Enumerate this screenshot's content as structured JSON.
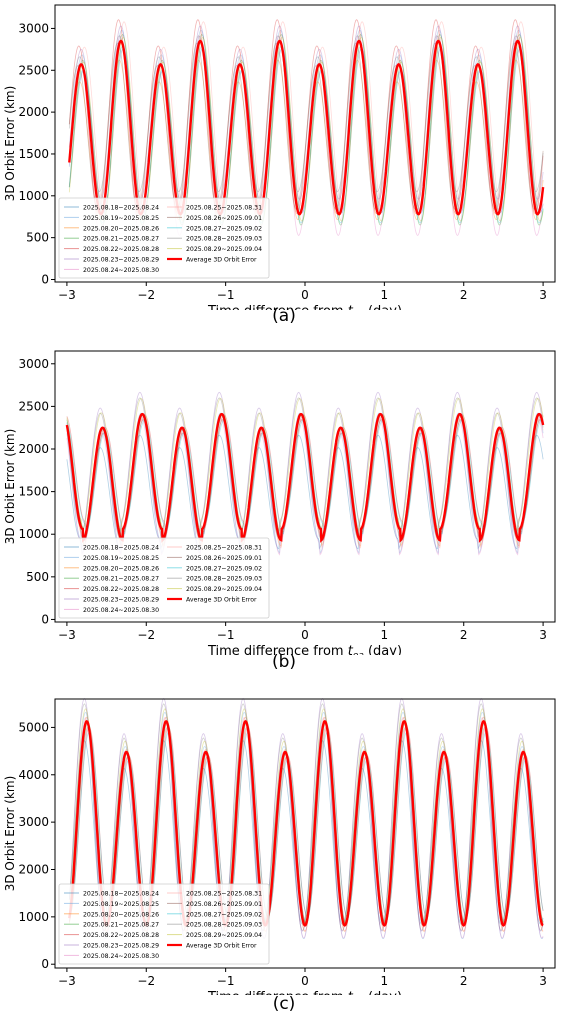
{
  "chart_data": [
    {
      "type": "line",
      "caption": "(a)",
      "ylabel": "3D Orbit Error (km)",
      "xlabel_prefix": "Time difference from ",
      "xlabel_sym": "t",
      "xlabel_sub": "oa",
      "xlabel_suffix": " (day)",
      "xlim": [
        -3.15,
        3.15
      ],
      "ylim": [
        -30,
        3280
      ],
      "xticks": [
        -3,
        -2,
        -1,
        0,
        1,
        2,
        3
      ],
      "yticks": [
        0,
        500,
        1000,
        1500,
        2000,
        2500,
        3000
      ],
      "average": {
        "name": "Average 3D Orbit Error",
        "color": "#ff0000",
        "period_days": 1.0,
        "peaks": [
          2570,
          2850
        ],
        "trough": 780,
        "first_peak_x": -2.82,
        "x_range": [
          -2.97,
          3.0
        ],
        "note_peak_x": [
          -2.82,
          -2.3,
          -1.82,
          -1.3,
          -0.82,
          -0.3,
          0.18,
          0.7,
          1.18,
          1.7,
          2.18,
          2.7
        ]
      },
      "series": [
        {
          "name": "2025.08.18~2025.08.24",
          "color": "#1f77b4",
          "amp": 0.95,
          "shift": 0.03,
          "offset": -20
        },
        {
          "name": "2025.08.19~2025.08.25",
          "color": "#5fa2dd",
          "amp": 1.05,
          "shift": 0.01,
          "offset": 60
        },
        {
          "name": "2025.08.20~2025.08.26",
          "color": "#ff7f0e",
          "amp": 0.92,
          "shift": -0.02,
          "offset": -120
        },
        {
          "name": "2025.08.21~2025.08.27",
          "color": "#2ca02c",
          "amp": 1.1,
          "shift": 0.02,
          "offset": -60
        },
        {
          "name": "2025.08.22~2025.08.28",
          "color": "#d62728",
          "amp": 1.12,
          "shift": -0.03,
          "offset": 90
        },
        {
          "name": "2025.08.23~2025.08.29",
          "color": "#9467bd",
          "amp": 1.0,
          "shift": 0.0,
          "offset": 180
        },
        {
          "name": "2025.08.24~2025.08.30",
          "color": "#e377c2",
          "amp": 1.15,
          "shift": -0.01,
          "offset": -150
        },
        {
          "name": "2025.08.25~2025.08.31",
          "color": "#ff9896",
          "amp": 1.08,
          "shift": 0.04,
          "offset": 120
        },
        {
          "name": "2025.08.26~2025.09.01",
          "color": "#8c564b",
          "amp": 0.96,
          "shift": -0.04,
          "offset": 30
        },
        {
          "name": "2025.08.27~2025.09.02",
          "color": "#17becf",
          "amp": 1.02,
          "shift": 0.02,
          "offset": -90
        },
        {
          "name": "2025.08.28~2025.09.03",
          "color": "#7f7f7f",
          "amp": 0.9,
          "shift": -0.02,
          "offset": 200
        },
        {
          "name": "2025.08.29~2025.09.04",
          "color": "#bcbd22",
          "amp": 1.06,
          "shift": 0.03,
          "offset": -40
        }
      ],
      "legend": {
        "placement": "lower-left",
        "col1": [
          "2025.08.18~2025.08.24",
          "2025.08.19~2025.08.25",
          "2025.08.20~2025.08.26",
          "2025.08.21~2025.08.27",
          "2025.08.22~2025.08.28",
          "2025.08.23~2025.08.29",
          "2025.08.24~2025.08.30"
        ],
        "col2": [
          "2025.08.25~2025.08.31",
          "2025.08.26~2025.09.01",
          "2025.08.27~2025.09.02",
          "2025.08.28~2025.09.03",
          "2025.08.29~2025.09.04",
          "Average 3D Orbit Error"
        ]
      }
    },
    {
      "type": "line",
      "caption": "(b)",
      "ylabel": "3D Orbit Error (km)",
      "xlabel_prefix": "Time difference from ",
      "xlabel_sym": "t",
      "xlabel_sub": "oa",
      "xlabel_suffix": " (day)",
      "xlim": [
        -3.15,
        3.15
      ],
      "ylim": [
        -30,
        3150
      ],
      "xticks": [
        -3,
        -2,
        -1,
        0,
        1,
        2,
        3
      ],
      "yticks": [
        0,
        500,
        1000,
        1500,
        2000,
        2500,
        3000
      ],
      "average": {
        "name": "Average 3D Orbit Error",
        "color": "#ff0000",
        "period_days": 1.0,
        "peaks": [
          2410,
          2250
        ],
        "troughs": [
          1060,
          930
        ],
        "first_peak_x": -2.05,
        "x_range": [
          -3.0,
          3.0
        ]
      },
      "series": [
        {
          "name": "2025.08.18~2025.08.24",
          "color": "#1f77b4"
        },
        {
          "name": "2025.08.19~2025.08.25",
          "color": "#5fa2dd"
        },
        {
          "name": "2025.08.20~2025.08.26",
          "color": "#ff7f0e"
        },
        {
          "name": "2025.08.21~2025.08.27",
          "color": "#2ca02c"
        },
        {
          "name": "2025.08.22~2025.08.28",
          "color": "#d62728"
        },
        {
          "name": "2025.08.23~2025.08.29",
          "color": "#9467bd"
        },
        {
          "name": "2025.08.24~2025.08.30",
          "color": "#e377c2"
        },
        {
          "name": "2025.08.25~2025.08.31",
          "color": "#ff9896"
        },
        {
          "name": "2025.08.26~2025.09.01",
          "color": "#8c564b"
        },
        {
          "name": "2025.08.27~2025.09.02",
          "color": "#17becf"
        },
        {
          "name": "2025.08.28~2025.09.03",
          "color": "#7f7f7f"
        },
        {
          "name": "2025.08.29~2025.09.04",
          "color": "#bcbd22"
        }
      ],
      "legend": {
        "placement": "lower-left",
        "col1": [
          "2025.08.18~2025.08.24",
          "2025.08.19~2025.08.25",
          "2025.08.20~2025.08.26",
          "2025.08.21~2025.08.27",
          "2025.08.22~2025.08.28",
          "2025.08.23~2025.08.29",
          "2025.08.24~2025.08.30"
        ],
        "col2": [
          "2025.08.25~2025.08.31",
          "2025.08.26~2025.09.01",
          "2025.08.27~2025.09.02",
          "2025.08.28~2025.09.03",
          "2025.08.29~2025.09.04",
          "Average 3D Orbit Error"
        ]
      }
    },
    {
      "type": "line",
      "caption": "(c)",
      "ylabel": "3D Orbit Error (km)",
      "xlabel_prefix": "Time difference from ",
      "xlabel_sym": "t",
      "xlabel_sub": "oa",
      "xlabel_suffix": " (day)",
      "xlim": [
        -3.15,
        3.15
      ],
      "ylim": [
        -80,
        5600
      ],
      "xticks": [
        -3,
        -2,
        -1,
        0,
        1,
        2,
        3
      ],
      "yticks": [
        0,
        1000,
        2000,
        3000,
        4000,
        5000
      ],
      "average": {
        "name": "Average 3D Orbit Error",
        "color": "#ff0000",
        "period_days": 1.0,
        "peaks": [
          5130,
          4480
        ],
        "trough": 820,
        "first_peak_x": -2.75,
        "x_range": [
          -2.97,
          3.0
        ]
      },
      "series": [
        {
          "name": "2025.08.18~2025.08.24",
          "color": "#1f77b4"
        },
        {
          "name": "2025.08.19~2025.08.25",
          "color": "#5fa2dd"
        },
        {
          "name": "2025.08.20~2025.08.26",
          "color": "#ff7f0e"
        },
        {
          "name": "2025.08.21~2025.08.27",
          "color": "#2ca02c"
        },
        {
          "name": "2025.08.22~2025.08.28",
          "color": "#d62728"
        },
        {
          "name": "2025.08.23~2025.08.29",
          "color": "#9467bd"
        },
        {
          "name": "2025.08.24~2025.08.30",
          "color": "#e377c2"
        },
        {
          "name": "2025.08.25~2025.08.31",
          "color": "#ff9896"
        },
        {
          "name": "2025.08.26~2025.09.01",
          "color": "#8c564b"
        },
        {
          "name": "2025.08.27~2025.09.02",
          "color": "#17becf"
        },
        {
          "name": "2025.08.28~2025.09.03",
          "color": "#7f7f7f"
        },
        {
          "name": "2025.08.29~2025.09.04",
          "color": "#bcbd22"
        }
      ],
      "legend": {
        "placement": "lower-left",
        "col1": [
          "2025.08.18~2025.08.24",
          "2025.08.19~2025.08.25",
          "2025.08.20~2025.08.26",
          "2025.08.21~2025.08.27",
          "2025.08.22~2025.08.28",
          "2025.08.23~2025.08.29",
          "2025.08.24~2025.08.30"
        ],
        "col2": [
          "2025.08.25~2025.08.31",
          "2025.08.26~2025.09.01",
          "2025.08.27~2025.09.02",
          "2025.08.28~2025.09.03",
          "2025.08.29~2025.09.04",
          "Average 3D Orbit Error"
        ]
      }
    }
  ]
}
